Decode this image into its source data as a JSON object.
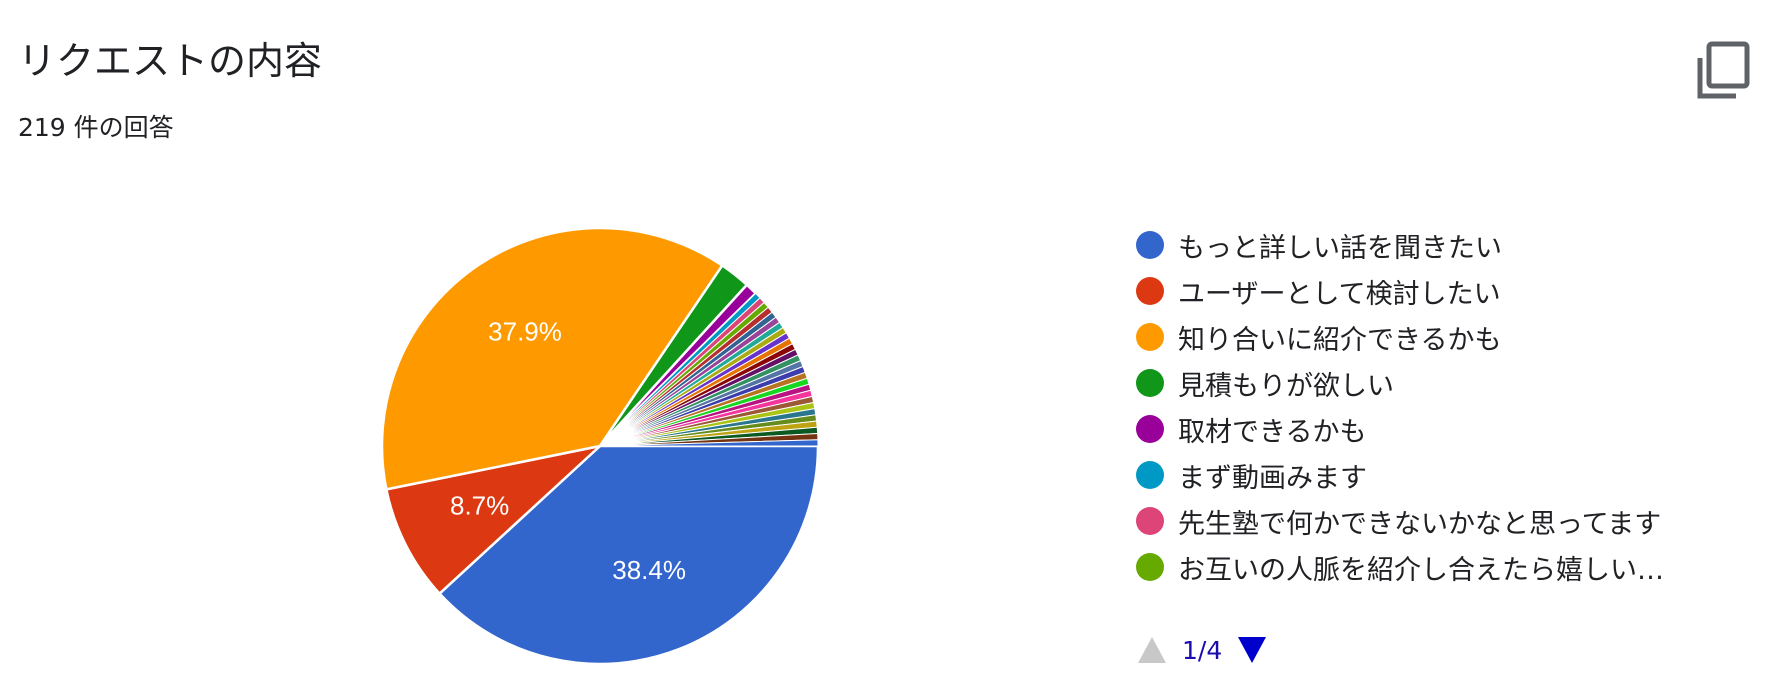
{
  "header": {
    "title": "リクエストの内容",
    "response_count": "219 件の回答"
  },
  "icons": {
    "copy": "copy-icon",
    "prev_page": "triangle-up-icon",
    "next_page": "triangle-down-icon"
  },
  "legend": {
    "items": [
      {
        "label": "もっと詳しい話を聞きたい",
        "color": "#3366cc"
      },
      {
        "label": "ユーザーとして検討したい",
        "color": "#dc3912"
      },
      {
        "label": "知り合いに紹介できるかも",
        "color": "#ff9900"
      },
      {
        "label": "見積もりが欲しい",
        "color": "#109618"
      },
      {
        "label": "取材できるかも",
        "color": "#990099"
      },
      {
        "label": "まず動画みます",
        "color": "#0099c6"
      },
      {
        "label": "先生塾で何かできないかなと思ってます",
        "color": "#dd4477"
      },
      {
        "label": "お互いの人脈を紹介し合えたら嬉しい…",
        "color": "#66aa00"
      }
    ],
    "pager": {
      "label": "1/4",
      "prev_color": "#c8c8c8",
      "next_color": "#0000cc"
    }
  },
  "chart_data": {
    "type": "pie",
    "title": "リクエストの内容",
    "total_responses": 219,
    "start_angle_deg": 0,
    "direction": "clockwise",
    "slices": [
      {
        "label": "もっと詳しい話を聞きたい",
        "percent": 38.4,
        "color": "#3366cc",
        "shown_label": "38.4%"
      },
      {
        "label": "ユーザーとして検討したい",
        "percent": 8.7,
        "color": "#dc3912",
        "shown_label": "8.7%"
      },
      {
        "label": "知り合いに紹介できるかも",
        "percent": 37.9,
        "color": "#ff9900",
        "shown_label": "37.9%"
      },
      {
        "label": "見積もりが欲しい",
        "percent": 2.3,
        "color": "#109618",
        "shown_label": ""
      },
      {
        "label": "取材できるかも",
        "percent": 0.9,
        "color": "#990099",
        "shown_label": ""
      },
      {
        "label": "まず動画みます",
        "percent": 0.46,
        "color": "#0099c6",
        "shown_label": ""
      },
      {
        "label": "先生塾で何かできないかなと思ってます",
        "percent": 0.46,
        "color": "#dd4477",
        "shown_label": ""
      },
      {
        "label": "お互いの人脈を紹介し合えたら嬉しい…",
        "percent": 0.46,
        "color": "#66aa00",
        "shown_label": ""
      }
    ],
    "other_small_slices": {
      "count": 24,
      "percent_each": 0.46,
      "colors": [
        "#b82e2e",
        "#316395",
        "#994499",
        "#22aa99",
        "#aaaa11",
        "#6633cc",
        "#e67300",
        "#8b0707",
        "#651067",
        "#329262",
        "#5574a6",
        "#3b3eac",
        "#b77322",
        "#16d620",
        "#b91383",
        "#f4359e",
        "#9c5935",
        "#a9c413",
        "#2a778d",
        "#668d1c",
        "#bea413",
        "#0c5922",
        "#743411",
        "#3366cc"
      ]
    },
    "label_color": "#ffffff"
  }
}
